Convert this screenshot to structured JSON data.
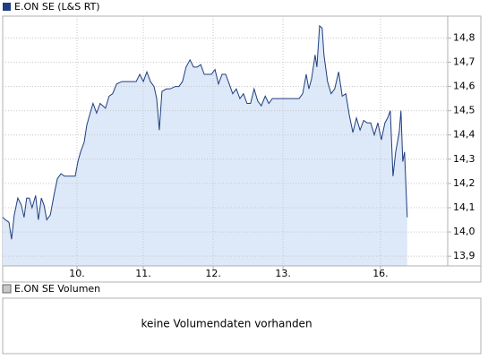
{
  "chart_data": {
    "type": "area",
    "x": [
      0,
      0.6,
      1.4,
      2.0,
      2.6,
      3.4,
      4.2,
      4.8,
      5.4,
      6.0,
      6.6,
      7.4,
      8.0,
      8.7,
      9.3,
      9.9,
      10.7,
      11.5,
      12.3,
      13.1,
      13.9,
      15.1,
      16.3,
      16.9,
      17.5,
      18.3,
      18.9,
      19.5,
      20.3,
      21.1,
      21.9,
      23.1,
      23.9,
      24.7,
      25.6,
      26.8,
      28.0,
      29.2,
      30.0,
      30.8,
      31.6,
      32.4,
      33.2,
      34.0,
      34.6,
      35.2,
      35.8,
      36.8,
      37.6,
      38.8,
      39.6,
      40.4,
      41.2,
      42.1,
      42.9,
      43.7,
      44.5,
      45.3,
      46.1,
      46.9,
      47.7,
      48.5,
      49.3,
      50.1,
      50.9,
      51.7,
      52.5,
      53.3,
      54.1,
      54.9,
      55.7,
      56.5,
      57.3,
      58.1,
      59.0,
      59.8,
      60.6,
      61.8,
      63.0,
      64.2,
      65.4,
      66.6,
      67.4,
      68.2,
      68.8,
      69.4,
      70.2,
      70.6,
      71.2,
      71.8,
      72.2,
      73.0,
      73.8,
      74.6,
      75.5,
      76.3,
      77.1,
      77.9,
      78.7,
      79.5,
      80.3,
      81.1,
      81.9,
      82.7,
      83.5,
      84.3,
      85.1,
      85.9,
      86.5,
      87.1,
      87.7,
      88.3,
      89.1,
      89.5,
      89.9,
      90.3,
      90.9
    ],
    "series": [
      {
        "name": "E.ON SE (L&S RT)",
        "color": "#1f3f7f",
        "fill": "#dde8f8",
        "values": [
          14.06,
          14.05,
          14.04,
          13.97,
          14.07,
          14.14,
          14.11,
          14.06,
          14.14,
          14.14,
          14.1,
          14.15,
          14.05,
          14.14,
          14.11,
          14.05,
          14.07,
          14.15,
          14.22,
          14.24,
          14.23,
          14.23,
          14.23,
          14.29,
          14.33,
          14.37,
          14.44,
          14.48,
          14.53,
          14.49,
          14.53,
          14.51,
          14.56,
          14.57,
          14.61,
          14.62,
          14.62,
          14.62,
          14.62,
          14.65,
          14.62,
          14.66,
          14.62,
          14.6,
          14.55,
          14.42,
          14.58,
          14.59,
          14.59,
          14.6,
          14.6,
          14.62,
          14.68,
          14.71,
          14.68,
          14.68,
          14.69,
          14.65,
          14.65,
          14.65,
          14.67,
          14.61,
          14.65,
          14.65,
          14.61,
          14.57,
          14.59,
          14.55,
          14.57,
          14.53,
          14.53,
          14.59,
          14.54,
          14.52,
          14.56,
          14.53,
          14.55,
          14.55,
          14.55,
          14.55,
          14.55,
          14.55,
          14.57,
          14.65,
          14.59,
          14.63,
          14.73,
          14.68,
          14.85,
          14.84,
          14.73,
          14.62,
          14.57,
          14.59,
          14.66,
          14.56,
          14.57,
          14.48,
          14.41,
          14.47,
          14.42,
          14.46,
          14.45,
          14.45,
          14.4,
          14.45,
          14.38,
          14.45,
          14.47,
          14.5,
          14.23,
          14.33,
          14.41,
          14.5,
          14.29,
          14.33,
          14.06
        ]
      }
    ],
    "xlim": [
      0,
      100
    ],
    "xticks": [
      {
        "value": 16.7,
        "label": "10."
      },
      {
        "value": 31.6,
        "label": "11."
      },
      {
        "value": 47.3,
        "label": "12."
      },
      {
        "value": 63.0,
        "label": "13."
      },
      {
        "value": 84.9,
        "label": "16."
      }
    ],
    "ylim": [
      13.86,
      14.89
    ],
    "yticks": [
      {
        "value": 13.9,
        "label": "13,9"
      },
      {
        "value": 14.0,
        "label": "14,0"
      },
      {
        "value": 14.1,
        "label": "14,1"
      },
      {
        "value": 14.2,
        "label": "14,2"
      },
      {
        "value": 14.3,
        "label": "14,3"
      },
      {
        "value": 14.4,
        "label": "14,4"
      },
      {
        "value": 14.5,
        "label": "14,5"
      },
      {
        "value": 14.6,
        "label": "14,6"
      },
      {
        "value": 14.7,
        "label": "14,7"
      },
      {
        "value": 14.8,
        "label": "14,8"
      }
    ],
    "grid": true
  },
  "volume_panel": {
    "legend": "E.ON SE Volumen",
    "color": "#c8c8c8",
    "message": "keine Volumendaten vorhanden"
  }
}
